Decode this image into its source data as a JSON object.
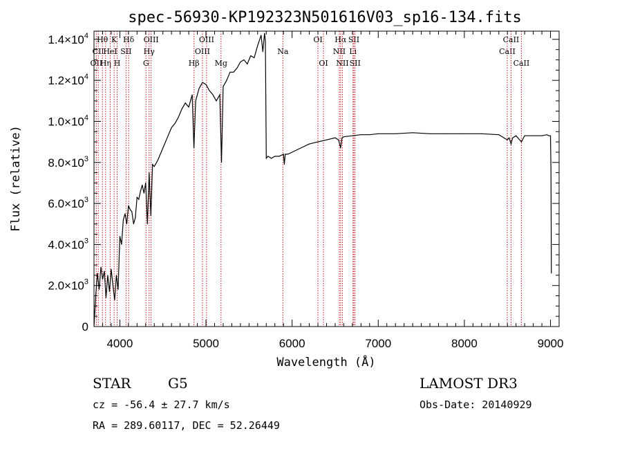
{
  "chart_data": {
    "type": "line",
    "title": "spec-56930-KP192323N501616V03_sp16-134.fits",
    "xlabel": "Wavelength (Å)",
    "ylabel": "Flux (relative)",
    "xlim": [
      3700,
      9100
    ],
    "ylim": [
      0,
      14400
    ],
    "x_ticks": [
      {
        "value": 4000,
        "label": "4000"
      },
      {
        "value": 5000,
        "label": "5000"
      },
      {
        "value": 6000,
        "label": "6000"
      },
      {
        "value": 7000,
        "label": "7000"
      },
      {
        "value": 8000,
        "label": "8000"
      },
      {
        "value": 9000,
        "label": "9000"
      }
    ],
    "y_ticks": [
      {
        "value": 0,
        "mantissa": "0",
        "exponent": ""
      },
      {
        "value": 2000,
        "mantissa": "2.0×10",
        "exponent": "3"
      },
      {
        "value": 4000,
        "mantissa": "4.0×10",
        "exponent": "3"
      },
      {
        "value": 6000,
        "mantissa": "6.0×10",
        "exponent": "3"
      },
      {
        "value": 8000,
        "mantissa": "8.0×10",
        "exponent": "3"
      },
      {
        "value": 10000,
        "mantissa": "1.0×10",
        "exponent": "4"
      },
      {
        "value": 12000,
        "mantissa": "1.2×10",
        "exponent": "4"
      },
      {
        "value": 14000,
        "mantissa": "1.4×10",
        "exponent": "4"
      }
    ],
    "series": [
      {
        "x": [
          3700,
          3720,
          3740,
          3760,
          3780,
          3800,
          3820,
          3840,
          3860,
          3880,
          3900,
          3920,
          3940,
          3960,
          3980,
          4000,
          4020,
          4040,
          4060,
          4080,
          4100,
          4120,
          4140,
          4160,
          4180,
          4200,
          4220,
          4240,
          4260,
          4280,
          4300,
          4320,
          4340,
          4360,
          4380,
          4400,
          4440,
          4480,
          4520,
          4560,
          4600,
          4640,
          4680,
          4720,
          4760,
          4800,
          4840,
          4860,
          4880,
          4920,
          4960,
          5000,
          5040,
          5080,
          5120,
          5160,
          5180,
          5200,
          5240,
          5280,
          5320,
          5360,
          5400,
          5440,
          5480,
          5520,
          5560,
          5600,
          5640,
          5660,
          5680,
          5690,
          5700,
          5720,
          5760,
          5800,
          5850,
          5900,
          5910,
          5920,
          5950,
          6000,
          6100,
          6200,
          6300,
          6400,
          6500,
          6540,
          6563,
          6580,
          6600,
          6700,
          6800,
          6900,
          7000,
          7200,
          7400,
          7600,
          7800,
          8000,
          8200,
          8400,
          8498,
          8520,
          8542,
          8560,
          8600,
          8662,
          8700,
          8800,
          8900,
          8960,
          8980,
          9000,
          9005,
          9010
        ],
        "y": [
          0,
          1500,
          2600,
          1800,
          2900,
          2300,
          2700,
          1400,
          2500,
          1700,
          2800,
          2000,
          1300,
          2500,
          1800,
          4400,
          4000,
          5200,
          5500,
          5000,
          5900,
          5700,
          5600,
          5000,
          5300,
          6300,
          6200,
          6600,
          6900,
          6500,
          7000,
          5000,
          7500,
          5400,
          7900,
          7800,
          8100,
          8500,
          8900,
          9300,
          9700,
          9900,
          10200,
          10600,
          10900,
          10700,
          11300,
          8700,
          11000,
          11600,
          11900,
          11800,
          11500,
          11300,
          11000,
          11300,
          8000,
          11700,
          12000,
          12400,
          12400,
          12600,
          12900,
          13000,
          12800,
          13200,
          13100,
          13700,
          14200,
          13400,
          14300,
          13900,
          8200,
          8300,
          8200,
          8300,
          8300,
          8400,
          7900,
          8400,
          8400,
          8500,
          8700,
          8900,
          9000,
          9100,
          9200,
          9100,
          8700,
          9200,
          9250,
          9300,
          9350,
          9350,
          9400,
          9400,
          9450,
          9400,
          9400,
          9400,
          9400,
          9350,
          9100,
          9200,
          8900,
          9200,
          9300,
          9000,
          9300,
          9300,
          9300,
          9350,
          9300,
          9300,
          7700,
          2600
        ]
      }
    ],
    "lines": [
      {
        "lambda": 3727,
        "labels": [
          "OII"
        ],
        "tiers": [
          2
        ]
      },
      {
        "lambda": 3750,
        "labels": [
          "CII"
        ],
        "tiers": [
          1
        ]
      },
      {
        "lambda": 3798,
        "labels": [
          "Hθ"
        ],
        "tiers": [
          0
        ]
      },
      {
        "lambda": 3835,
        "labels": [
          "Hη"
        ],
        "tiers": [
          2
        ]
      },
      {
        "lambda": 3889,
        "labels": [
          "HeI"
        ],
        "tiers": [
          1
        ]
      },
      {
        "lambda": 3934,
        "labels": [
          "K"
        ],
        "tiers": [
          0
        ]
      },
      {
        "lambda": 3969,
        "labels": [
          "H"
        ],
        "tiers": [
          2
        ]
      },
      {
        "lambda": 4072,
        "labels": [
          "SII"
        ],
        "tiers": [
          1
        ]
      },
      {
        "lambda": 4102,
        "labels": [
          "Hδ"
        ],
        "tiers": [
          0
        ]
      },
      {
        "lambda": 4304,
        "labels": [
          "G"
        ],
        "tiers": [
          2
        ]
      },
      {
        "lambda": 4340,
        "labels": [
          "Hγ"
        ],
        "tiers": [
          1
        ]
      },
      {
        "lambda": 4363,
        "labels": [
          "OIII"
        ],
        "tiers": [
          0
        ]
      },
      {
        "lambda": 4861,
        "labels": [
          "Hβ"
        ],
        "tiers": [
          2
        ]
      },
      {
        "lambda": 4959,
        "labels": [
          "OIII"
        ],
        "tiers": [
          1
        ]
      },
      {
        "lambda": 5007,
        "labels": [
          "OIII"
        ],
        "tiers": [
          0
        ]
      },
      {
        "lambda": 5175,
        "labels": [
          "Mg"
        ],
        "tiers": [
          2
        ]
      },
      {
        "lambda": 5893,
        "labels": [
          "Na"
        ],
        "tiers": [
          1
        ]
      },
      {
        "lambda": 6300,
        "labels": [
          "OI"
        ],
        "tiers": [
          0
        ]
      },
      {
        "lambda": 6364,
        "labels": [
          "OI"
        ],
        "tiers": [
          2
        ]
      },
      {
        "lambda": 6548,
        "labels": [
          "NII"
        ],
        "tiers": [
          1
        ]
      },
      {
        "lambda": 6563,
        "labels": [
          "Hα"
        ],
        "tiers": [
          0
        ]
      },
      {
        "lambda": 6584,
        "labels": [
          "NII"
        ],
        "tiers": [
          2
        ]
      },
      {
        "lambda": 6707,
        "labels": [
          "Li"
        ],
        "tiers": [
          1
        ]
      },
      {
        "lambda": 6717,
        "labels": [
          "SII"
        ],
        "tiers": [
          0
        ]
      },
      {
        "lambda": 6731,
        "labels": [
          "SII"
        ],
        "tiers": [
          2
        ]
      },
      {
        "lambda": 8498,
        "labels": [
          "CaII"
        ],
        "tiers": [
          1
        ]
      },
      {
        "lambda": 8542,
        "labels": [
          "CaII"
        ],
        "tiers": [
          0
        ]
      },
      {
        "lambda": 8662,
        "labels": [
          "CaII"
        ],
        "tiers": [
          2
        ]
      }
    ],
    "line_color": "#c8141e"
  },
  "info": {
    "class": "STAR",
    "subclass": "G5",
    "survey": "LAMOST DR3",
    "redshift": "cz = -56.4 ± 27.7 km/s",
    "obs_date": "Obs-Date: 20140929",
    "coords": "RA = 289.60117, DEC =  52.26449"
  }
}
